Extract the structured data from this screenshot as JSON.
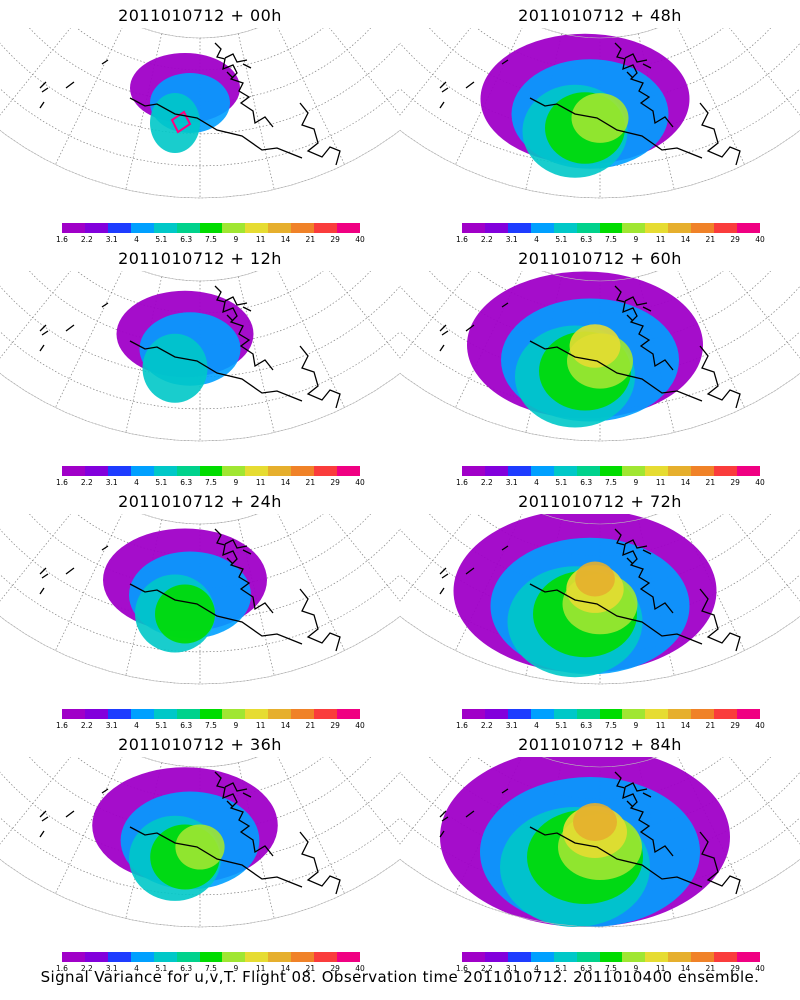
{
  "panels": [
    {
      "title": "2011010712 + 00h",
      "spread": 0.0
    },
    {
      "title": "2011010712 + 48h",
      "spread": 0.55
    },
    {
      "title": "2011010712 + 12h",
      "spread": 0.15
    },
    {
      "title": "2011010712 + 60h",
      "spread": 0.7
    },
    {
      "title": "2011010712 + 24h",
      "spread": 0.3
    },
    {
      "title": "2011010712 + 72h",
      "spread": 0.85
    },
    {
      "title": "2011010712 + 36h",
      "spread": 0.42
    },
    {
      "title": "2011010712 + 84h",
      "spread": 1.0
    }
  ],
  "colorbar": {
    "labels": [
      "1.6",
      "2.2",
      "3.1",
      "4",
      "5.1",
      "6.3",
      "7.5",
      "9",
      "11",
      "14",
      "21",
      "29",
      "40"
    ],
    "colors": [
      "#a000c8",
      "#8200dc",
      "#1e3cff",
      "#00a0ff",
      "#00c8c8",
      "#00d28c",
      "#00dc00",
      "#a0e632",
      "#e6dc32",
      "#e6af2d",
      "#f08228",
      "#fa3c3c",
      "#f00082"
    ]
  },
  "footer": "Signal Variance for u,v,T. Flight 08. Observation time 2011010712. 2011010400 ensemble.",
  "theme": {
    "coastline": "#000000",
    "grid": "#808080",
    "observation_marker": "#ff0080"
  }
}
